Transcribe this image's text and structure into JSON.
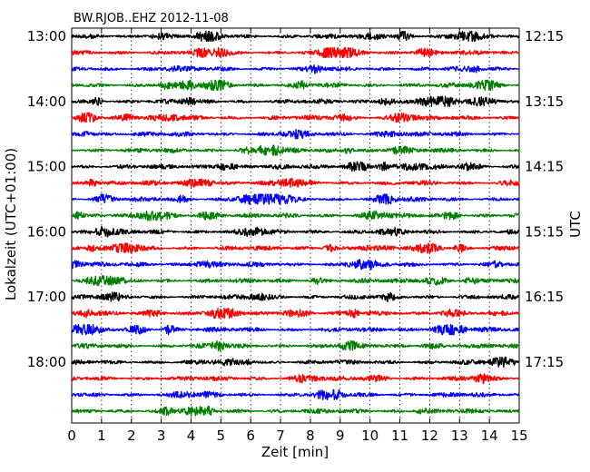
{
  "chart_data": {
    "type": "line",
    "title": "BW.RJOB..EHZ 2012-11-08",
    "xlabel": "Zeit  [min]",
    "ylabel_left": "Lokalzeit (UTC+01:00)",
    "ylabel_right": "UTC",
    "xlim": [
      0,
      15
    ],
    "x_ticks": [
      "0",
      "1",
      "2",
      "3",
      "4",
      "5",
      "6",
      "7",
      "8",
      "9",
      "10",
      "11",
      "12",
      "13",
      "14",
      "15"
    ],
    "left_tick_labels": [
      "13:00",
      "14:00",
      "15:00",
      "16:00",
      "17:00",
      "18:00"
    ],
    "right_tick_labels": [
      "12:15",
      "13:15",
      "14:15",
      "15:15",
      "16:15",
      "17:15"
    ],
    "grid": "vertical dotted lines at each minute",
    "trace_colors": [
      "#000000",
      "#ff0000",
      "#0000ff",
      "#008000"
    ],
    "trace_count": 24,
    "minutes_per_trace": 15
  }
}
